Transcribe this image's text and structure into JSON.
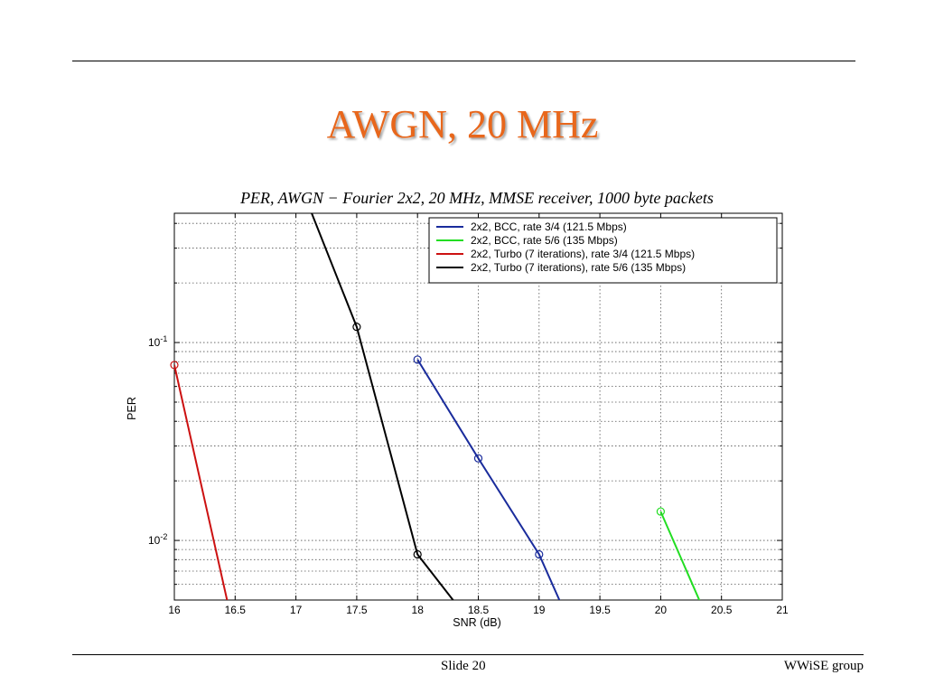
{
  "slide": {
    "title": "AWGN, 20 MHz",
    "footer_left": "Slide 20",
    "footer_right": "WWiSE group"
  },
  "chart_data": {
    "type": "line",
    "title": "PER, AWGN − Fourier 2x2, 20 MHz, MMSE receiver, 1000 byte packets",
    "xlabel": "SNR (dB)",
    "ylabel": "PER",
    "y_scale": "log",
    "xlim": [
      16,
      21
    ],
    "ylim": [
      0.005,
      0.45
    ],
    "xticks": [
      "16",
      "16.5",
      "17",
      "17.5",
      "18",
      "18.5",
      "19",
      "19.5",
      "20",
      "20.5",
      "21"
    ],
    "yticks": [
      {
        "value": 0.1,
        "base": "10",
        "exp": "-1"
      },
      {
        "value": 0.01,
        "base": "10",
        "exp": "-2"
      }
    ],
    "grid": true,
    "legend_position": "top-right",
    "series": [
      {
        "name": "2x2, BCC, rate 3/4 (121.5 Mbps)",
        "color": "#1a2c9c",
        "points": [
          [
            18,
            0.082
          ],
          [
            18.5,
            0.026
          ],
          [
            19,
            0.0085
          ],
          [
            19.2,
            0.0045
          ]
        ],
        "markers": [
          [
            18,
            0.082
          ],
          [
            18.5,
            0.026
          ],
          [
            19,
            0.0085
          ]
        ]
      },
      {
        "name": "2x2, BCC, rate 5/6 (135 Mbps)",
        "color": "#22dd22",
        "points": [
          [
            20,
            0.014
          ],
          [
            20.35,
            0.0045
          ]
        ],
        "markers": [
          [
            20,
            0.014
          ]
        ]
      },
      {
        "name": "2x2, Turbo (7 iterations), rate 3/4 (121.5 Mbps)",
        "color": "#cc1111",
        "points": [
          [
            16,
            0.077
          ],
          [
            16.45,
            0.0045
          ]
        ],
        "markers": [
          [
            16,
            0.077
          ]
        ]
      },
      {
        "name": "2x2, Turbo (7 iterations), rate 5/6 (135 Mbps)",
        "color": "#000000",
        "points": [
          [
            17.1,
            0.5
          ],
          [
            17.5,
            0.12
          ],
          [
            18,
            0.0085
          ],
          [
            18.35,
            0.0045
          ]
        ],
        "markers": [
          [
            17.5,
            0.12
          ],
          [
            18,
            0.0085
          ]
        ]
      }
    ]
  }
}
